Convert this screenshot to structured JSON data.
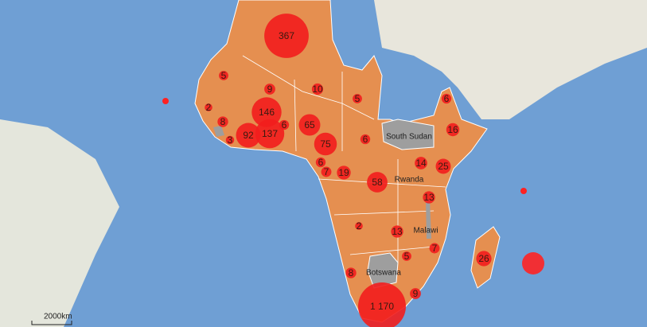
{
  "map": {
    "country_labels": [
      "South Sudan",
      "Rwanda",
      "Malawi",
      "Botswana"
    ],
    "scale_label": "2000km",
    "bubbles": [
      {
        "value": 367
      },
      {
        "value": 5
      },
      {
        "value": 9
      },
      {
        "value": 10
      },
      {
        "value": 5
      },
      {
        "value": 2
      },
      {
        "value": 146
      },
      {
        "value": 8
      },
      {
        "value": 92
      },
      {
        "value": 137
      },
      {
        "value": 6
      },
      {
        "value": 65
      },
      {
        "value": 3
      },
      {
        "value": 75
      },
      {
        "value": 6
      },
      {
        "value": 6
      },
      {
        "value": 16
      },
      {
        "value": 6
      },
      {
        "value": 7
      },
      {
        "value": 19
      },
      {
        "value": 58
      },
      {
        "value": 14
      },
      {
        "value": 25
      },
      {
        "value": 13
      },
      {
        "value": 2
      },
      {
        "value": 13
      },
      {
        "value": 5
      },
      {
        "value": 7
      },
      {
        "value": 26
      },
      {
        "value": 8
      },
      {
        "value": 9
      },
      {
        "value": 1170,
        "label": "1 170"
      }
    ]
  }
}
